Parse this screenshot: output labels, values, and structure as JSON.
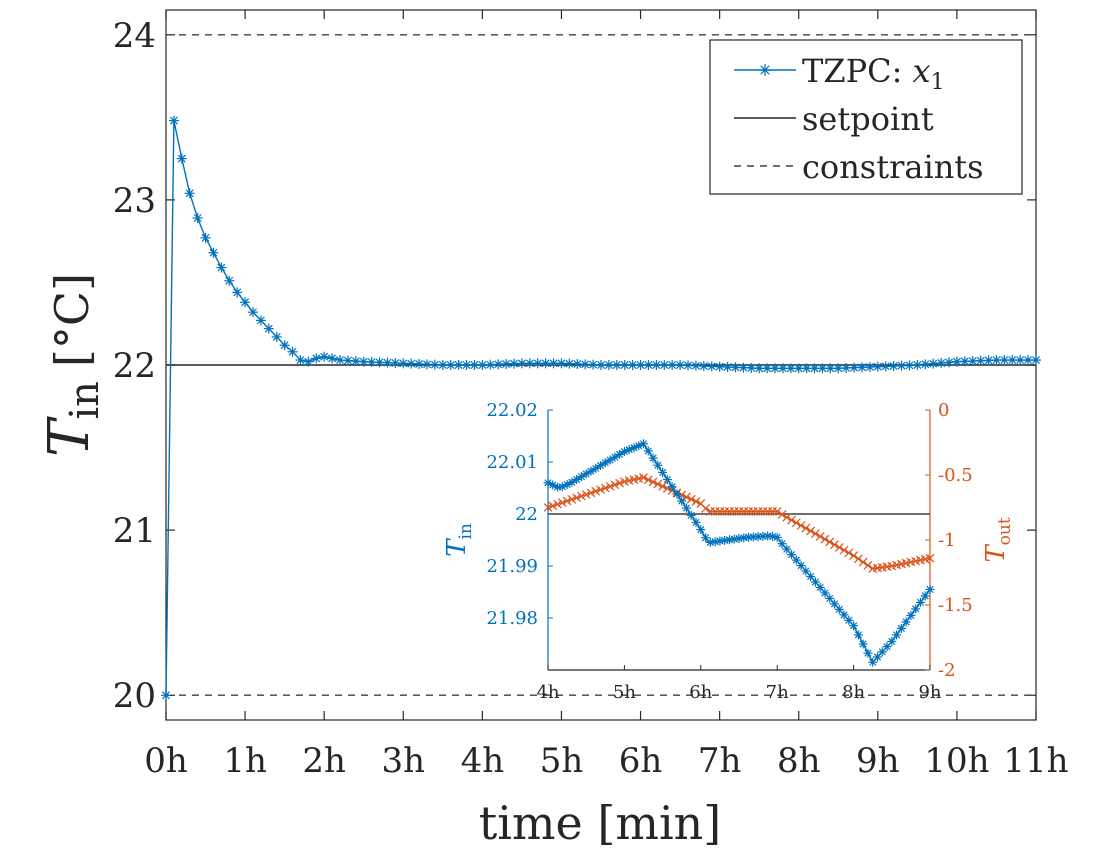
{
  "chart_data": [
    {
      "type": "line",
      "xlabel": "time [min]",
      "ylabel": {
        "base": "T",
        "sub": "in",
        "unit": "[°C]"
      },
      "xlim": [
        0,
        11
      ],
      "ylim": [
        19.85,
        24.15
      ],
      "x_ticks": [
        0,
        1,
        2,
        3,
        4,
        5,
        6,
        7,
        8,
        9,
        10,
        11
      ],
      "x_tick_labels": [
        "0h",
        "1h",
        "2h",
        "3h",
        "4h",
        "5h",
        "6h",
        "7h",
        "8h",
        "9h",
        "10h",
        "11h"
      ],
      "y_ticks": [
        20,
        21,
        22,
        23,
        24
      ],
      "y_tick_labels": [
        "20",
        "21",
        "22",
        "23",
        "24"
      ],
      "grid": false,
      "legend_placement": "top-right",
      "legend": [
        {
          "label": "TZPC: ",
          "math": "x",
          "sub": "1",
          "style": "line-star"
        },
        {
          "label": "setpoint",
          "style": "solid"
        },
        {
          "label": "constraints",
          "style": "dashed"
        }
      ],
      "series": [
        {
          "name": "TZPC: x1",
          "color": "#0072BD",
          "marker": "star",
          "x": [
            0,
            0.1,
            0.2,
            0.3,
            0.4,
            0.5,
            0.6,
            0.7,
            0.8,
            0.9,
            1.0,
            1.1,
            1.2,
            1.3,
            1.4,
            1.5,
            1.6,
            1.7,
            1.8,
            1.9,
            2.0,
            2.2,
            2.5,
            3.0,
            3.5,
            4.0,
            4.5,
            5.0,
            5.5,
            6.0,
            6.5,
            7.0,
            7.5,
            8.0,
            8.5,
            9.0,
            9.5,
            10.0,
            10.5,
            11.0
          ],
          "y": [
            20.0,
            23.48,
            23.25,
            23.04,
            22.89,
            22.77,
            22.68,
            22.59,
            22.51,
            22.44,
            22.38,
            22.32,
            22.27,
            22.22,
            22.17,
            22.12,
            22.08,
            22.03,
            22.02,
            22.04,
            22.05,
            22.03,
            22.02,
            22.01,
            22.0,
            22.0,
            22.01,
            22.01,
            22.0,
            22.0,
            22.0,
            21.99,
            21.98,
            21.98,
            21.98,
            21.99,
            22.0,
            22.02,
            22.03,
            22.03
          ]
        },
        {
          "name": "setpoint",
          "color": "#262626",
          "x": [
            0,
            11
          ],
          "y": [
            22,
            22
          ]
        },
        {
          "name": "constraints upper",
          "color": "#404040",
          "x": [
            0,
            11
          ],
          "y": [
            24,
            24
          ]
        },
        {
          "name": "constraints lower",
          "color": "#404040",
          "x": [
            0,
            11
          ],
          "y": [
            20,
            20
          ]
        }
      ]
    },
    {
      "type": "line",
      "placement": "inset",
      "xlim": [
        4,
        9
      ],
      "x_ticks": [
        4,
        5,
        6,
        7,
        8,
        9
      ],
      "x_tick_labels": [
        "4h",
        "5h",
        "6h",
        "7h",
        "8h",
        "9h"
      ],
      "y_left": {
        "label": {
          "base": "T",
          "sub": "in"
        },
        "color": "#0072BD",
        "lim": [
          21.97,
          22.02
        ],
        "ticks": [
          21.98,
          21.99,
          22.0,
          22.01,
          22.02
        ],
        "tick_labels": [
          "21.98",
          "21.99",
          "22",
          "22.01",
          "22.02"
        ]
      },
      "y_right": {
        "label": {
          "base": "T",
          "sub": "out"
        },
        "color": "#D95319",
        "lim": [
          -2,
          0
        ],
        "ticks": [
          -2,
          -1.5,
          -1,
          -0.5,
          0
        ],
        "tick_labels": [
          "-2",
          "-1.5",
          "-1",
          "-0.5",
          "0"
        ]
      },
      "series": [
        {
          "name": "T_in",
          "axis": "left",
          "color": "#0072BD",
          "marker": "star",
          "x": [
            4.0,
            4.15,
            4.3,
            5.0,
            5.25,
            6.0,
            6.1,
            6.6,
            6.9,
            7.0,
            7.05,
            8.0,
            8.25,
            8.5,
            9.0
          ],
          "y": [
            22.006,
            22.005,
            22.006,
            22.012,
            22.0135,
            21.997,
            21.9945,
            21.9955,
            21.9958,
            21.9955,
            21.9945,
            21.9785,
            21.9715,
            21.9755,
            21.9855
          ]
        },
        {
          "name": "T_out",
          "axis": "right",
          "color": "#D95319",
          "marker": "x",
          "x": [
            4.0,
            5.0,
            5.25,
            6.0,
            6.1,
            7.0,
            7.05,
            8.0,
            8.25,
            8.5,
            9.0
          ],
          "y": [
            -0.75,
            -0.55,
            -0.52,
            -0.72,
            -0.78,
            -0.78,
            -0.8,
            -1.12,
            -1.22,
            -1.2,
            -1.14
          ]
        },
        {
          "name": "setpoint",
          "axis": "left",
          "color": "#404040",
          "x": [
            4,
            9
          ],
          "y": [
            22,
            22
          ]
        }
      ]
    }
  ]
}
